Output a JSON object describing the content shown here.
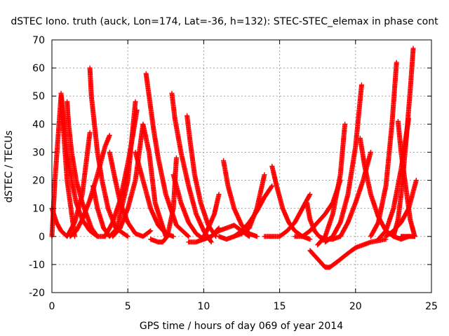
{
  "chart_data": {
    "type": "scatter",
    "title": "dSTEC Iono. truth (auck, Lon=174, Lat=-36, h=132): STEC-STEC_elemax in phase cont",
    "xlabel": "GPS time / hours of day 069 of year 2014",
    "ylabel": "dSTEC  / TECUs",
    "xlim": [
      0,
      25
    ],
    "ylim": [
      -20,
      70
    ],
    "xticks": [
      0,
      5,
      10,
      15,
      20,
      25
    ],
    "yticks": [
      -20,
      -10,
      0,
      10,
      20,
      30,
      40,
      50,
      60,
      70
    ],
    "grid": true,
    "marker": "+",
    "color": "#ff0000",
    "series": [
      {
        "x": [
          0.0,
          0.1,
          0.2,
          0.4,
          0.6,
          1.0,
          1.5
        ],
        "y": [
          0,
          10,
          20,
          35,
          50,
          20,
          0
        ]
      },
      {
        "x": [
          0.0,
          0.3,
          0.6,
          1.0,
          1.5,
          2.0,
          2.5
        ],
        "y": [
          10,
          5,
          2,
          0,
          5,
          15,
          37
        ]
      },
      {
        "x": [
          0.6,
          0.8,
          1.0,
          1.3,
          1.6,
          2.0,
          2.5,
          3.0,
          3.5
        ],
        "y": [
          51,
          40,
          30,
          20,
          12,
          6,
          2,
          0,
          0
        ]
      },
      {
        "x": [
          1.0,
          1.1,
          1.3,
          1.6,
          2.0,
          2.6,
          3.0
        ],
        "y": [
          48,
          40,
          30,
          20,
          12,
          3,
          0
        ]
      },
      {
        "x": [
          1.2,
          1.6,
          2.0,
          2.5,
          3.0,
          3.5,
          3.8
        ],
        "y": [
          0,
          2,
          6,
          13,
          22,
          32,
          36
        ]
      },
      {
        "x": [
          2.5,
          2.6,
          2.8,
          3.0,
          3.3,
          3.7,
          4.2,
          5.0
        ],
        "y": [
          60,
          50,
          40,
          30,
          20,
          10,
          3,
          0
        ]
      },
      {
        "x": [
          2.7,
          3.0,
          3.4,
          3.8,
          4.3,
          5.0,
          5.5
        ],
        "y": [
          18,
          10,
          3,
          0,
          3,
          20,
          48
        ]
      },
      {
        "x": [
          3.8,
          4.1,
          4.5,
          5.0,
          5.5,
          6.0,
          6.5
        ],
        "y": [
          30,
          22,
          12,
          5,
          1,
          0,
          2
        ]
      },
      {
        "x": [
          3.5,
          4.0,
          4.5,
          5.0,
          5.3,
          5.6
        ],
        "y": [
          0,
          5,
          13,
          26,
          35,
          45
        ]
      },
      {
        "x": [
          4.0,
          4.5,
          5.0,
          5.5,
          6.0,
          6.4,
          6.8,
          7.5
        ],
        "y": [
          0,
          3,
          10,
          20,
          40,
          30,
          12,
          0
        ]
      },
      {
        "x": [
          5.5,
          6.0,
          6.5,
          7.0,
          7.5,
          8.0
        ],
        "y": [
          30,
          20,
          10,
          4,
          1,
          0
        ]
      },
      {
        "x": [
          6.2,
          6.4,
          6.7,
          7.0,
          7.5,
          8.2,
          9.0
        ],
        "y": [
          58,
          50,
          38,
          28,
          15,
          4,
          0
        ]
      },
      {
        "x": [
          6.5,
          7.0,
          7.3,
          7.6,
          8.0,
          8.2
        ],
        "y": [
          -1,
          -2,
          -2,
          0,
          10,
          28
        ]
      },
      {
        "x": [
          7.9,
          8.1,
          8.5,
          9.0,
          9.5,
          10.0,
          10.5
        ],
        "y": [
          51,
          42,
          30,
          18,
          8,
          2,
          -2
        ]
      },
      {
        "x": [
          8.0,
          8.5,
          9.0,
          9.5,
          10.0,
          10.5,
          11.0
        ],
        "y": [
          22,
          12,
          5,
          1,
          -1,
          0,
          3
        ]
      },
      {
        "x": [
          8.9,
          9.1,
          9.4,
          9.8,
          10.3,
          10.8
        ],
        "y": [
          43,
          34,
          22,
          12,
          4,
          0
        ]
      },
      {
        "x": [
          9.0,
          9.5,
          10.0,
          10.5,
          11.0,
          12.0,
          13.0
        ],
        "y": [
          -2,
          -2,
          -1,
          0,
          2,
          4,
          0
        ]
      },
      {
        "x": [
          10.0,
          10.3,
          10.7,
          11.0
        ],
        "y": [
          0,
          3,
          8,
          15
        ]
      },
      {
        "x": [
          11.3,
          11.6,
          12.0,
          12.5,
          13.0,
          13.5
        ],
        "y": [
          27,
          18,
          10,
          4,
          1,
          0
        ]
      },
      {
        "x": [
          11.0,
          11.5,
          12.0,
          12.5,
          13.0,
          13.5,
          14.0
        ],
        "y": [
          0,
          -1,
          0,
          1,
          3,
          10,
          22
        ]
      },
      {
        "x": [
          12.0,
          12.5,
          13.0,
          13.5,
          14.0,
          14.5
        ],
        "y": [
          0,
          2,
          5,
          9,
          14,
          18
        ]
      },
      {
        "x": [
          14.5,
          14.8,
          15.2,
          15.6,
          16.0,
          16.5,
          17.0
        ],
        "y": [
          25,
          18,
          10,
          5,
          2,
          0,
          -1
        ]
      },
      {
        "x": [
          14.0,
          14.5,
          15.0,
          15.5,
          16.0,
          16.5,
          17.0
        ],
        "y": [
          0,
          0,
          0,
          2,
          5,
          10,
          15
        ]
      },
      {
        "x": [
          16.8,
          17.0,
          17.3,
          17.6,
          18.0,
          18.5,
          19.0
        ],
        "y": [
          12,
          6,
          2,
          0,
          -1,
          -1,
          0
        ]
      },
      {
        "x": [
          16.0,
          16.5,
          17.0,
          17.5,
          18.0,
          18.5,
          19.0
        ],
        "y": [
          0,
          0,
          2,
          5,
          8,
          12,
          20
        ]
      },
      {
        "x": [
          17.0,
          17.5,
          18.0,
          18.3,
          18.8,
          19.5,
          20.0,
          21.0,
          22.0
        ],
        "y": [
          -5,
          -8,
          -11,
          -11,
          -9,
          -6,
          -4,
          -2,
          -1
        ]
      },
      {
        "x": [
          17.5,
          18.0,
          18.5,
          19.0,
          19.3
        ],
        "y": [
          -3,
          0,
          8,
          22,
          40
        ]
      },
      {
        "x": [
          18.0,
          18.5,
          19.0,
          19.5,
          20.0,
          20.4
        ],
        "y": [
          -2,
          0,
          5,
          15,
          32,
          54
        ]
      },
      {
        "x": [
          19.0,
          19.5,
          20.0,
          20.5,
          21.0
        ],
        "y": [
          0,
          5,
          12,
          20,
          30
        ]
      },
      {
        "x": [
          20.3,
          20.6,
          21.0,
          21.5,
          22.0,
          22.5,
          23.0,
          23.5
        ],
        "y": [
          35,
          25,
          15,
          7,
          2,
          0,
          -1,
          0
        ]
      },
      {
        "x": [
          21.0,
          21.5,
          22.0,
          22.4,
          22.7
        ],
        "y": [
          0,
          5,
          18,
          40,
          62
        ]
      },
      {
        "x": [
          21.5,
          22.0,
          22.5,
          23.0,
          23.5
        ],
        "y": [
          -1,
          2,
          10,
          24,
          42
        ]
      },
      {
        "x": [
          22.5,
          22.8,
          23.0,
          23.3,
          23.6,
          23.8
        ],
        "y": [
          0,
          6,
          15,
          32,
          52,
          67
        ]
      },
      {
        "x": [
          22.8,
          23.0,
          23.3,
          23.6,
          23.9
        ],
        "y": [
          41,
          30,
          18,
          6,
          0
        ]
      },
      {
        "x": [
          22.0,
          22.5,
          23.0,
          23.5,
          24.0
        ],
        "y": [
          0,
          2,
          5,
          10,
          20
        ]
      },
      {
        "x": [
          23.0,
          23.3,
          23.6,
          23.9
        ],
        "y": [
          0,
          0,
          0,
          0
        ]
      }
    ]
  }
}
